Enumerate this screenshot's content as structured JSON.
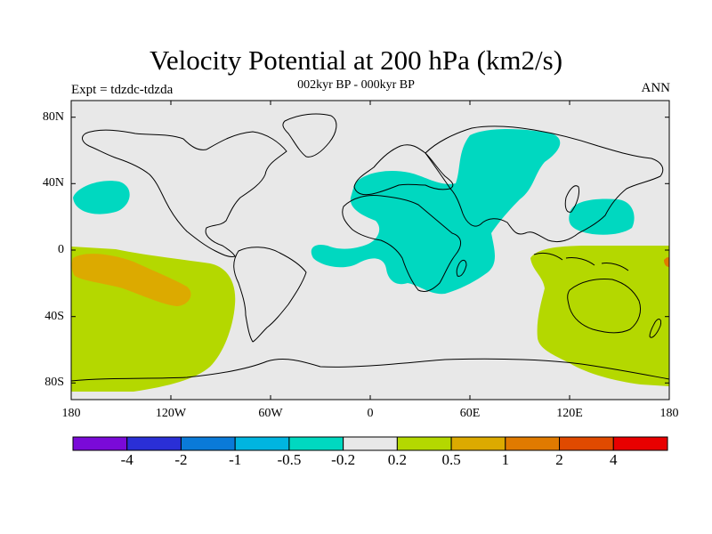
{
  "title": "Velocity Potential at 200 hPa (km2/s)",
  "subtitle": "002kyr BP - 000kyr BP",
  "left_label": "Expt = tdzdc-tdzda",
  "right_label": "ANN",
  "axes": {
    "lat_ticks": [
      {
        "value": 80,
        "label": "80N"
      },
      {
        "value": 40,
        "label": "40N"
      },
      {
        "value": 0,
        "label": "0"
      },
      {
        "value": -40,
        "label": "40S"
      },
      {
        "value": -80,
        "label": "80S"
      }
    ],
    "lon_ticks": [
      {
        "value": -180,
        "label": "180"
      },
      {
        "value": -120,
        "label": "120W"
      },
      {
        "value": -60,
        "label": "60W"
      },
      {
        "value": 0,
        "label": "0"
      },
      {
        "value": 60,
        "label": "60E"
      },
      {
        "value": 120,
        "label": "120E"
      },
      {
        "value": 180,
        "label": "180"
      }
    ],
    "lon_range": [
      -180,
      180
    ],
    "lat_range": [
      -90,
      90
    ]
  },
  "colorbar": {
    "colors": [
      "#7a0ad8",
      "#2a2fd6",
      "#0a7ad8",
      "#00b5e0",
      "#00d8c0",
      "#e8e8e8",
      "#b4d800",
      "#dcaa00",
      "#e07a00",
      "#e04a00",
      "#e80000"
    ],
    "labels": [
      "-4",
      "-2",
      "-1",
      "-0.5",
      "-0.2",
      "0.2",
      "0.5",
      "1",
      "2",
      "4"
    ]
  },
  "colors": {
    "ocean_background": "#e8e8e8",
    "negative_region": "#00d8c0",
    "positive_region": "#b4d800",
    "strong_positive_region": "#dcaa00"
  }
}
